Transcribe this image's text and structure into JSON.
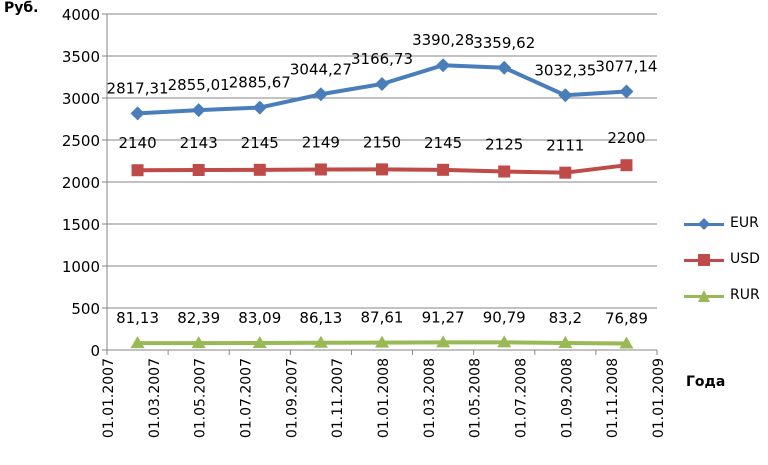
{
  "chart_data": {
    "type": "line",
    "ylabel": "Руб.",
    "xlabel": "Года",
    "ylim": [
      0,
      4000
    ],
    "yticks": [
      0,
      500,
      1000,
      1500,
      2000,
      2500,
      3000,
      3500,
      4000
    ],
    "x_tick_labels": [
      "01.01.2007",
      "01.03.2007",
      "01.05.2007",
      "01.07.2007",
      "01.09.2007",
      "01.11.2007",
      "01.01.2008",
      "01.03.2008",
      "01.05.2008",
      "01.07.2008",
      "01.09.2008",
      "01.11.2008",
      "01.01.2009"
    ],
    "x": [
      "01.01.2007",
      "01.04.2007",
      "01.07.2007",
      "01.10.2007",
      "01.01.2008",
      "01.04.2008",
      "01.07.2008",
      "01.10.2008",
      "01.01.2009"
    ],
    "grid": "horizontal",
    "legend_position": "right",
    "series": [
      {
        "name": "EUR",
        "color": "#4A7EBB",
        "marker": "diamond",
        "values": [
          2817.31,
          2855.01,
          2885.67,
          3044.27,
          3166.73,
          3390.28,
          3359.62,
          3032.35,
          3077.14
        ],
        "labels": [
          "2817,31",
          "2855,01",
          "2885,67",
          "3044,27",
          "3166,73",
          "3390,28",
          "3359,62",
          "3032,35",
          "3077,14"
        ]
      },
      {
        "name": "USD",
        "color": "#BE4B48",
        "marker": "square",
        "values": [
          2140,
          2143,
          2145,
          2149,
          2150,
          2145,
          2125,
          2111,
          2200
        ],
        "labels": [
          "2140",
          "2143",
          "2145",
          "2149",
          "2150",
          "2145",
          "2125",
          "2111",
          "2200"
        ]
      },
      {
        "name": "RUR",
        "color": "#98B954",
        "marker": "triangle",
        "values": [
          81.13,
          82.39,
          83.09,
          86.13,
          87.61,
          91.27,
          90.79,
          83.2,
          76.89
        ],
        "labels": [
          "81,13",
          "82,39",
          "83,09",
          "86,13",
          "87,61",
          "91,27",
          "90,79",
          "83,2",
          "76,89"
        ]
      }
    ]
  }
}
